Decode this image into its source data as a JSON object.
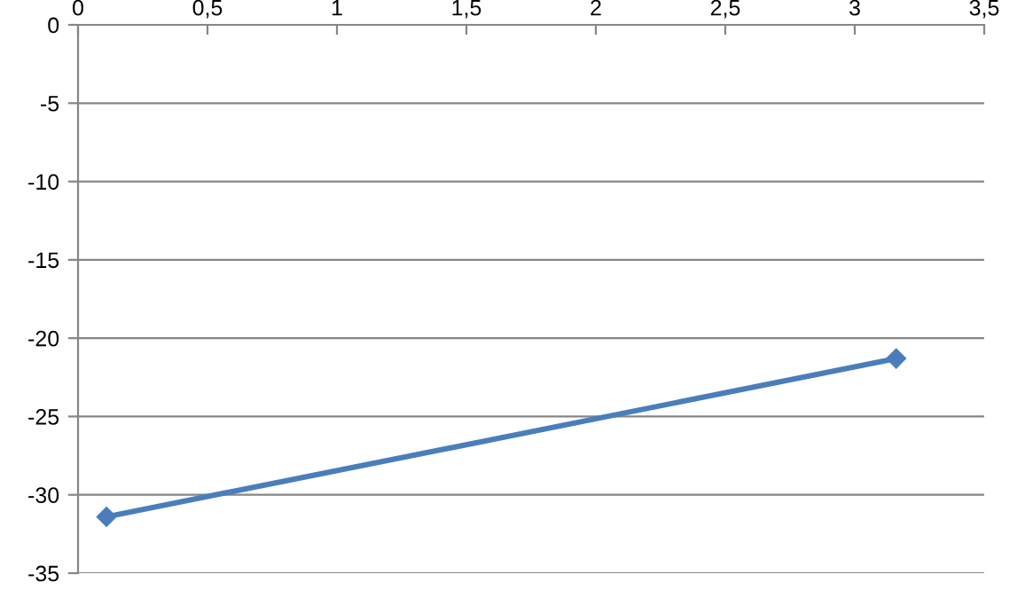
{
  "chart_data": {
    "type": "line",
    "x": [
      0.11,
      3.16
    ],
    "series": [
      {
        "color": "#4a7ebb",
        "values": [
          -31.4,
          -21.3
        ]
      }
    ],
    "xlim": [
      0,
      3.5
    ],
    "xticks": [
      0,
      {
        "value": 0.5,
        "label": "0,5"
      },
      1,
      {
        "value": 1.5,
        "label": "1,5"
      },
      2,
      {
        "value": 2.5,
        "label": "2,5"
      },
      3,
      {
        "value": 3.5,
        "label": "3,5"
      }
    ],
    "ylim": [
      -35,
      0
    ],
    "yticks": [
      -35,
      -30,
      -25,
      -20,
      -15,
      -10,
      -5,
      0
    ],
    "grid": "y",
    "marker": "diamond",
    "line_style": "solid",
    "legend": false
  }
}
